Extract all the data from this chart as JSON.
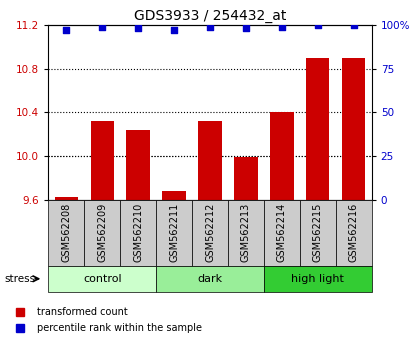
{
  "title": "GDS3933 / 254432_at",
  "samples": [
    "GSM562208",
    "GSM562209",
    "GSM562210",
    "GSM562211",
    "GSM562212",
    "GSM562213",
    "GSM562214",
    "GSM562215",
    "GSM562216"
  ],
  "bar_values": [
    9.63,
    10.32,
    10.24,
    9.68,
    10.32,
    9.99,
    10.4,
    10.9,
    10.9
  ],
  "dot_values": [
    97,
    99,
    98,
    97,
    99,
    98,
    99,
    100,
    100
  ],
  "ylim_left": [
    9.6,
    11.2
  ],
  "ylim_right": [
    0,
    100
  ],
  "bar_color": "#cc0000",
  "dot_color": "#0000cc",
  "groups": [
    {
      "label": "control",
      "start": 0,
      "end": 3,
      "color": "#ccffcc"
    },
    {
      "label": "dark",
      "start": 3,
      "end": 6,
      "color": "#99ee99"
    },
    {
      "label": "high light",
      "start": 6,
      "end": 9,
      "color": "#33cc33"
    }
  ],
  "stress_label": "stress",
  "yticks_left": [
    9.6,
    10.0,
    10.4,
    10.8,
    11.2
  ],
  "yticks_right": [
    0,
    25,
    50,
    75,
    100
  ],
  "grid_values": [
    10.0,
    10.4,
    10.8
  ],
  "bar_width": 0.65,
  "sample_box_color": "#cccccc",
  "background_color": "#ffffff",
  "title_fontsize": 10,
  "tick_fontsize": 7.5,
  "label_fontsize": 7,
  "group_fontsize": 8,
  "legend_fontsize": 7
}
